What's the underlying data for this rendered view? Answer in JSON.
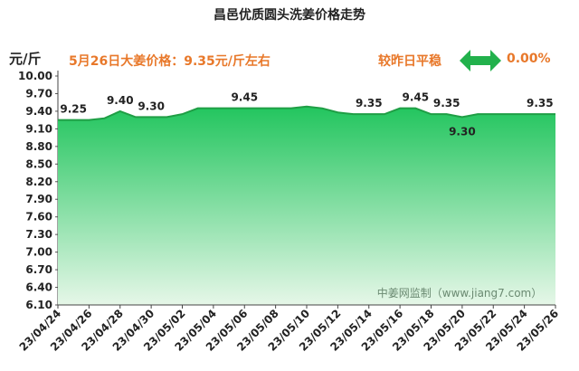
{
  "header": {
    "title": "昌邑优质圆头洗姜价格走势",
    "unit": "元/斤",
    "today_price": "5月26日大姜价格：9.35元/斤左右",
    "compare_label": "较昨日平稳",
    "change": "0.00%",
    "arrow_icon": "double-arrow-icon",
    "arrow_color": "#22b14c"
  },
  "watermark": "中姜网监制（www.jiang7.com）",
  "colors": {
    "line": "#1f9e45",
    "fill_top": "#22c55e",
    "fill_bottom": "#e6f7e8",
    "label": "#222222",
    "accent": "#e8782a"
  },
  "chart_data": {
    "type": "area",
    "title": "昌邑优质圆头洗姜价格走势",
    "ylabel": "元/斤",
    "xlabel": "",
    "ylim": [
      6.1,
      10.0
    ],
    "yticks": [
      6.1,
      6.4,
      6.7,
      7.0,
      7.3,
      7.6,
      7.9,
      8.2,
      8.5,
      8.8,
      9.1,
      9.4,
      9.7,
      10.0
    ],
    "categories": [
      "23/04/24",
      "23/04/26",
      "23/04/28",
      "23/04/30",
      "23/05/02",
      "23/05/04",
      "23/05/06",
      "23/05/08",
      "23/05/10",
      "23/05/12",
      "23/05/14",
      "23/05/16",
      "23/05/18",
      "23/05/20",
      "23/05/22",
      "23/05/24",
      "23/05/26"
    ],
    "x": [
      0,
      1,
      2,
      3,
      4,
      5,
      6,
      7,
      8,
      9,
      10,
      11,
      12,
      13,
      14,
      15,
      16,
      17,
      18,
      19,
      20,
      21,
      22,
      23,
      24,
      25,
      26,
      27,
      28,
      29,
      30,
      31,
      32
    ],
    "values": [
      9.25,
      9.25,
      9.25,
      9.28,
      9.4,
      9.3,
      9.3,
      9.3,
      9.35,
      9.45,
      9.45,
      9.45,
      9.45,
      9.45,
      9.45,
      9.45,
      9.48,
      9.45,
      9.38,
      9.35,
      9.35,
      9.35,
      9.45,
      9.45,
      9.35,
      9.35,
      9.3,
      9.35,
      9.35,
      9.35,
      9.35,
      9.35,
      9.35
    ],
    "data_labels": [
      {
        "x": 1,
        "text": "9.25"
      },
      {
        "x": 4,
        "text": "9.40"
      },
      {
        "x": 6,
        "text": "9.30"
      },
      {
        "x": 12,
        "text": "9.45"
      },
      {
        "x": 20,
        "text": "9.35"
      },
      {
        "x": 23,
        "text": "9.45"
      },
      {
        "x": 25,
        "text": "9.35"
      },
      {
        "x": 26,
        "text": "9.30"
      },
      {
        "x": 31,
        "text": "9.35"
      }
    ],
    "grid": false,
    "legend": "none"
  }
}
